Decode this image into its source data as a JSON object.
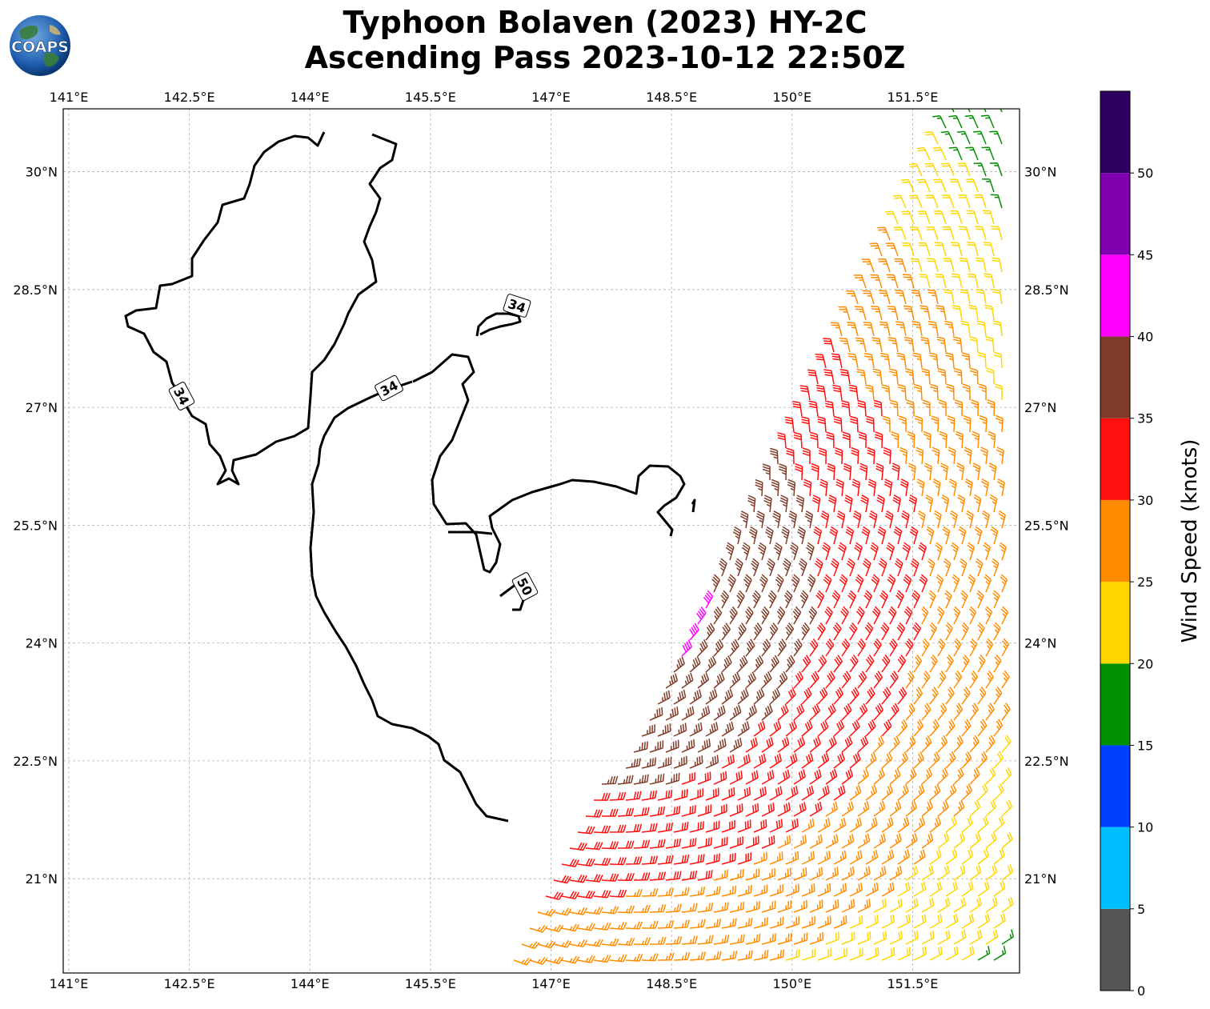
{
  "title": {
    "line1": "Typhoon Bolaven (2023) HY-2C",
    "line2": "Ascending Pass 2023-10-12 22:50Z"
  },
  "logo": {
    "text": "COAPS",
    "icon": "globe-logo"
  },
  "map": {
    "lon_range": [
      141.0,
      152.9
    ],
    "lat_range": [
      19.8,
      30.8
    ],
    "lon_ticks": [
      "141°E",
      "142.5°E",
      "144°E",
      "145.5°E",
      "147°E",
      "148.5°E",
      "150°E",
      "151.5°E"
    ],
    "lat_ticks": [
      "30°N",
      "28.5°N",
      "27°N",
      "25.5°N",
      "24°N",
      "22.5°N",
      "21°N"
    ],
    "grid": true,
    "storm_center": {
      "lon": 146.6,
      "lat": 24.9
    },
    "contour_labels": [
      "34",
      "34",
      "34",
      "50"
    ]
  },
  "colorbar": {
    "label": "Wind Speed (knots)",
    "ticks": [
      "0",
      "5",
      "10",
      "15",
      "20",
      "25",
      "30",
      "35",
      "40",
      "45",
      "50"
    ],
    "bins": [
      {
        "min": 0,
        "max": 5,
        "color": "#555555"
      },
      {
        "min": 5,
        "max": 10,
        "color": "#00bfff"
      },
      {
        "min": 10,
        "max": 15,
        "color": "#0040ff"
      },
      {
        "min": 15,
        "max": 20,
        "color": "#009000"
      },
      {
        "min": 20,
        "max": 25,
        "color": "#ffd700"
      },
      {
        "min": 25,
        "max": 30,
        "color": "#ff8c00"
      },
      {
        "min": 30,
        "max": 35,
        "color": "#ff0f0f"
      },
      {
        "min": 35,
        "max": 40,
        "color": "#803c28"
      },
      {
        "min": 40,
        "max": 45,
        "color": "#ff00ff"
      },
      {
        "min": 45,
        "max": 50,
        "color": "#8000b0"
      },
      {
        "min": 50,
        "max": 55,
        "color": "#2d0060"
      }
    ]
  }
}
